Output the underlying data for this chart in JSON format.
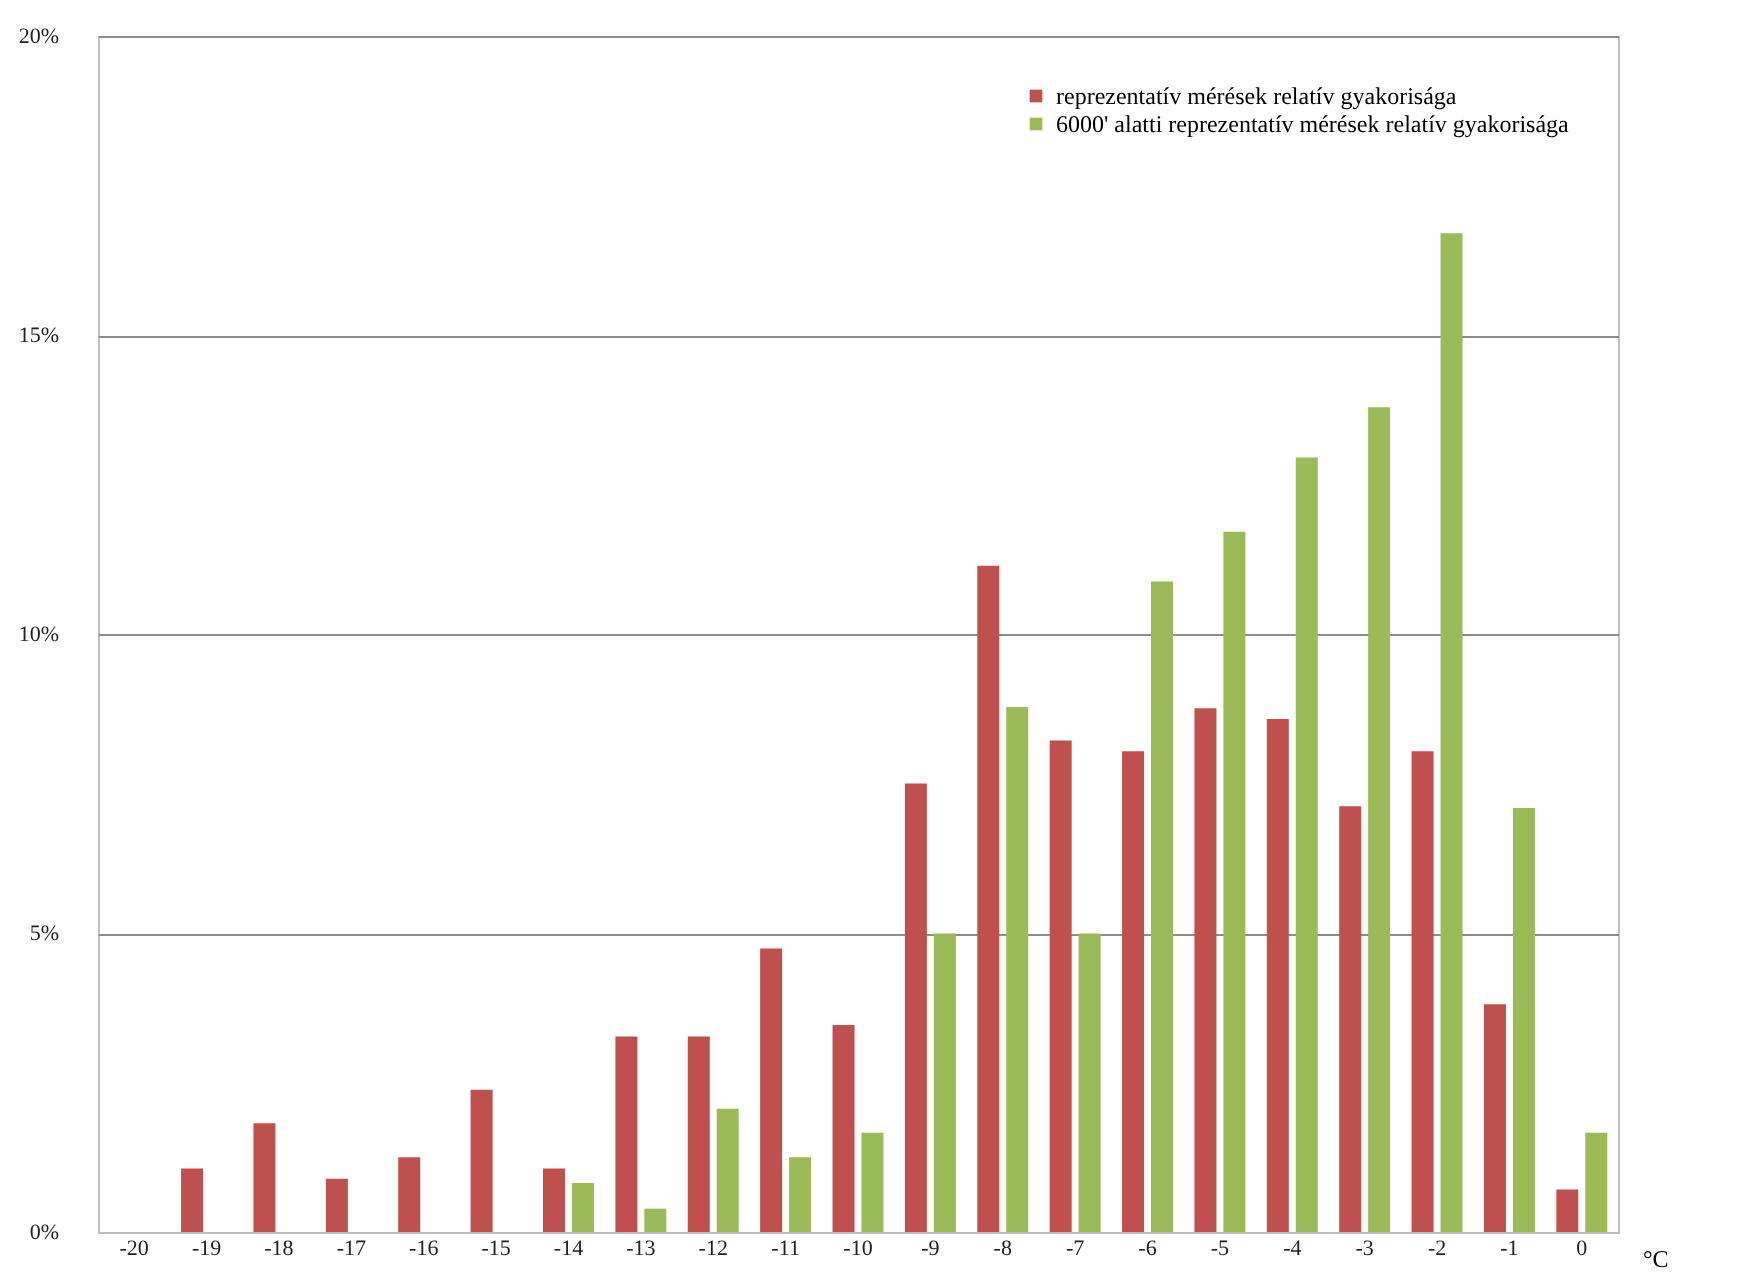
{
  "chart_data": {
    "type": "bar",
    "xlabel": "°C",
    "categories": [
      "-20",
      "-19",
      "-18",
      "-17",
      "-16",
      "-15",
      "-14",
      "-13",
      "-12",
      "-11",
      "-10",
      "-9",
      "-8",
      "-7",
      "-6",
      "-5",
      "-4",
      "-3",
      "-2",
      "-1",
      "0"
    ],
    "series": [
      {
        "name": "reprezentatív mérések relatív gyakorisága",
        "color": "#c0504d",
        "values": [
          null,
          1.06,
          1.82,
          0.89,
          1.25,
          2.38,
          1.06,
          3.27,
          3.27,
          4.74,
          3.46,
          7.5,
          11.14,
          8.22,
          8.04,
          8.76,
          8.58,
          7.12,
          8.04,
          3.81,
          0.71
        ]
      },
      {
        "name": "6000' alatti reprezentatív mérések relatív gyakorisága",
        "color": "#9bbb59",
        "values": [
          null,
          null,
          null,
          null,
          null,
          null,
          0.82,
          0.39,
          2.06,
          1.25,
          1.66,
          4.99,
          8.78,
          4.99,
          10.88,
          11.71,
          12.95,
          13.79,
          16.7,
          7.09,
          1.66
        ]
      }
    ],
    "ylim": [
      0,
      20
    ],
    "yticks": [
      {
        "value": 0,
        "label": "0%"
      },
      {
        "value": 5,
        "label": "5%"
      },
      {
        "value": 10,
        "label": "10%"
      },
      {
        "value": 15,
        "label": "15%"
      },
      {
        "value": 20,
        "label": "20%"
      }
    ],
    "grid": "y",
    "legend": "top right"
  }
}
